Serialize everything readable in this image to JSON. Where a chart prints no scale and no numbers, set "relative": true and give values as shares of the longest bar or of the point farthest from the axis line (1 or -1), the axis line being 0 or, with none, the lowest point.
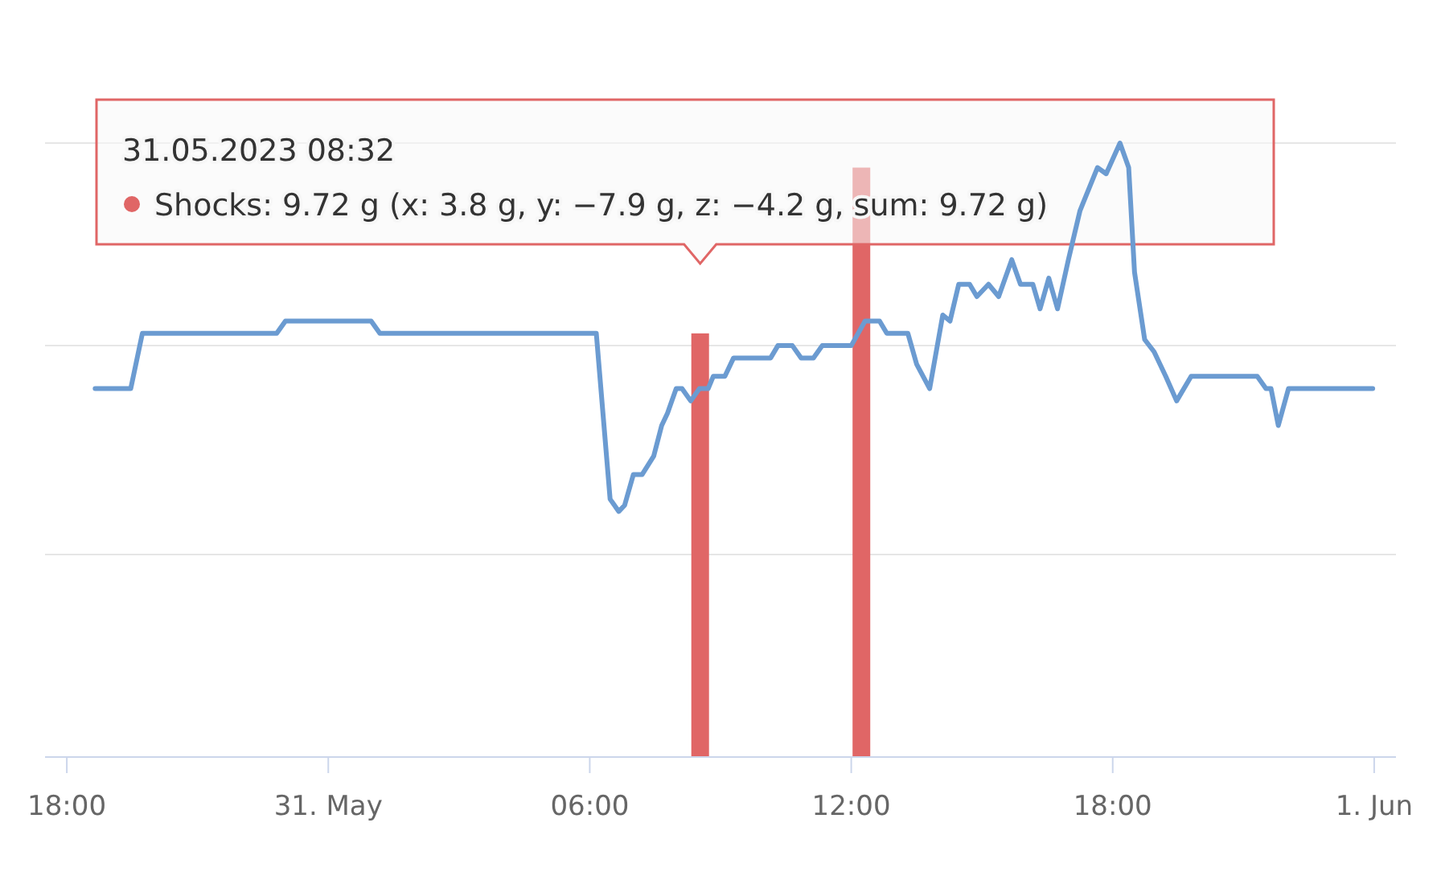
{
  "chart_data": {
    "type": "line",
    "relative": true,
    "marker": "none",
    "ref_lines": [
      {
        "axis": "y",
        "value": 0.33,
        "color": "#e6e6e6"
      },
      {
        "axis": "y",
        "value": 0.67,
        "color": "#e6e6e6"
      },
      {
        "axis": "y",
        "value": 1,
        "color": "#e6e6e6"
      }
    ],
    "line_style": "solid",
    "xlim": [
      "2023-05-30T17:30",
      "2023-06-01T00:30"
    ],
    "xticks": [
      {
        "value": "2023-05-30T18:00",
        "label": "18:00"
      },
      {
        "value": "2023-05-31T00:00",
        "label": "31. May"
      },
      {
        "value": "2023-05-31T06:00",
        "label": "06:00"
      },
      {
        "value": "2023-05-31T12:00",
        "label": "12:00"
      },
      {
        "value": "2023-05-31T18:00",
        "label": "18:00"
      },
      {
        "value": "2023-06-01T00:00",
        "label": "1. Jun"
      }
    ],
    "series": [
      {
        "color": "#6b9bd1",
        "x": [
          "2023-05-30T18:39",
          "2023-05-30T19:28",
          "2023-05-30T19:44",
          "2023-05-30T22:49",
          "2023-05-30T23:01",
          "2023-05-31T00:59",
          "2023-05-31T01:11",
          "2023-05-31T06:09",
          "2023-05-31T06:28",
          "2023-05-31T06:40",
          "2023-05-31T06:48",
          "2023-05-31T07:00",
          "2023-05-31T07:12",
          "2023-05-31T07:28",
          "2023-05-31T07:39",
          "2023-05-31T07:47",
          "2023-05-31T07:59",
          "2023-05-31T08:07",
          "2023-05-31T08:19",
          "2023-05-31T08:31",
          "2023-05-31T08:43",
          "2023-05-31T08:50",
          "2023-05-31T09:06",
          "2023-05-31T09:18",
          "2023-05-31T10:09",
          "2023-05-31T10:19",
          "2023-05-31T10:39",
          "2023-05-31T10:51",
          "2023-05-31T11:08",
          "2023-05-31T11:20",
          "2023-05-31T12:00",
          "2023-05-31T12:19",
          "2023-05-31T12:39",
          "2023-05-31T12:49",
          "2023-05-31T13:18",
          "2023-05-31T13:30",
          "2023-05-31T13:48",
          "2023-05-31T14:06",
          "2023-05-31T14:16",
          "2023-05-31T14:28",
          "2023-05-31T14:43",
          "2023-05-31T14:53",
          "2023-05-31T15:09",
          "2023-05-31T15:23",
          "2023-05-31T15:41",
          "2023-05-31T15:53",
          "2023-05-31T16:10",
          "2023-05-31T16:20",
          "2023-05-31T16:32",
          "2023-05-31T16:44",
          "2023-05-31T16:59",
          "2023-05-31T17:15",
          "2023-05-31T17:39",
          "2023-05-31T17:51",
          "2023-05-31T18:10",
          "2023-05-31T18:22",
          "2023-05-31T18:30",
          "2023-05-31T18:44",
          "2023-05-31T18:57",
          "2023-05-31T19:13",
          "2023-05-31T19:28",
          "2023-05-31T19:48",
          "2023-05-31T21:19",
          "2023-05-31T21:31",
          "2023-05-31T21:38",
          "2023-05-31T21:48",
          "2023-05-31T22:02",
          "2023-05-31T23:58"
        ],
        "values": [
          0.6,
          0.6,
          0.69,
          0.69,
          0.71,
          0.71,
          0.69,
          0.69,
          0.42,
          0.4,
          0.41,
          0.46,
          0.46,
          0.49,
          0.54,
          0.56,
          0.6,
          0.6,
          0.58,
          0.6,
          0.6,
          0.62,
          0.62,
          0.65,
          0.65,
          0.67,
          0.67,
          0.65,
          0.65,
          0.67,
          0.67,
          0.71,
          0.71,
          0.69,
          0.69,
          0.64,
          0.6,
          0.72,
          0.71,
          0.77,
          0.77,
          0.75,
          0.77,
          0.75,
          0.81,
          0.77,
          0.77,
          0.73,
          0.78,
          0.73,
          0.81,
          0.89,
          0.96,
          0.95,
          1,
          0.96,
          0.79,
          0.68,
          0.66,
          0.62,
          0.58,
          0.62,
          0.62,
          0.6,
          0.6,
          0.54,
          0.6,
          0.6
        ]
      },
      {
        "type": "bar",
        "color": "#e06666",
        "x": [
          "2023-05-31T08:32",
          "2023-05-31T12:14"
        ],
        "values": [
          0.69,
          0.96
        ]
      }
    ],
    "annotations": [
      "31.05.2023 08:32",
      "Shocks: 9.72 g (x: 3.8 g, y: −7.9 g, z: −4.2 g, sum: 9.72 g)"
    ]
  }
}
